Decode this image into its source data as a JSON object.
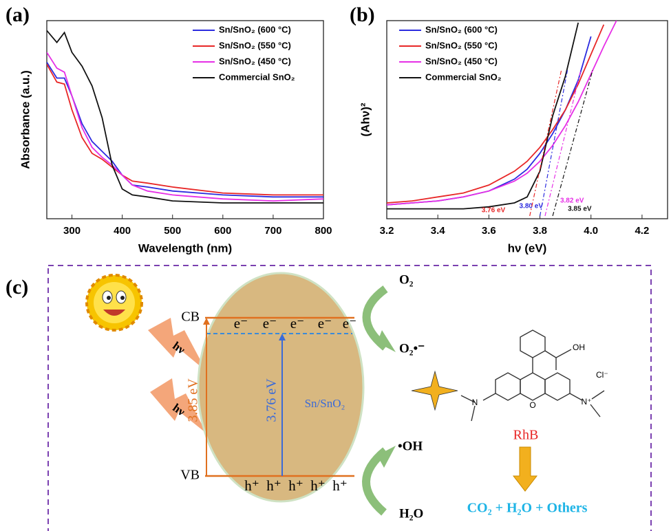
{
  "chart_data": [
    {
      "type": "line",
      "xlabel": "Wavelength (nm)",
      "ylabel": "Absorbance (a.u.)",
      "legend": "upper right",
      "x": [
        250,
        270,
        285,
        300,
        320,
        340,
        360,
        380,
        400,
        420,
        450,
        500,
        600,
        700,
        800
      ],
      "xlim": [
        250,
        800
      ],
      "xticks": [
        300,
        400,
        500,
        600,
        700,
        800
      ],
      "ylim": [
        0,
        1
      ],
      "series": [
        {
          "name": "Sn/SnO₂ (600 °C)",
          "color": "#2b2bdf",
          "values": [
            0.79,
            0.71,
            0.71,
            0.62,
            0.48,
            0.39,
            0.34,
            0.29,
            0.22,
            0.17,
            0.16,
            0.14,
            0.12,
            0.11,
            0.11
          ]
        },
        {
          "name": "Sn/SnO₂ (550 °C)",
          "color": "#e82626",
          "values": [
            0.78,
            0.69,
            0.68,
            0.55,
            0.41,
            0.33,
            0.3,
            0.26,
            0.22,
            0.19,
            0.18,
            0.16,
            0.13,
            0.12,
            0.12
          ]
        },
        {
          "name": "Sn/SnO₂ (450 °C)",
          "color": "#e62ee6",
          "values": [
            0.84,
            0.76,
            0.74,
            0.62,
            0.46,
            0.36,
            0.31,
            0.27,
            0.22,
            0.17,
            0.14,
            0.12,
            0.1,
            0.09,
            0.1
          ]
        },
        {
          "name": "Commercial SnO₂",
          "color": "#111111",
          "values": [
            0.95,
            0.89,
            0.94,
            0.84,
            0.77,
            0.67,
            0.51,
            0.27,
            0.15,
            0.12,
            0.11,
            0.09,
            0.08,
            0.08,
            0.08
          ]
        }
      ]
    },
    {
      "type": "line",
      "xlabel": "hν (eV)",
      "ylabel": "(Ahν)²",
      "legend": "upper left",
      "x": [
        3.2,
        3.3,
        3.4,
        3.5,
        3.6,
        3.7,
        3.75,
        3.8,
        3.85,
        3.9,
        3.95,
        4.0,
        4.05,
        4.1
      ],
      "xlim": [
        3.2,
        4.3
      ],
      "xticks": [
        {
          "value": 3.2,
          "label": "3.2"
        },
        {
          "value": 3.4,
          "label": "3.4"
        },
        {
          "value": 3.6,
          "label": "3.6"
        },
        {
          "value": 3.8,
          "label": "3.8"
        },
        {
          "value": 4.0,
          "label": "4.0"
        },
        {
          "value": 4.2,
          "label": "4.2"
        }
      ],
      "ylim": [
        0,
        1
      ],
      "series": [
        {
          "name": "Sn/SnO₂ (600 °C)",
          "color": "#2b2bdf",
          "values": [
            0.07,
            0.08,
            0.09,
            0.11,
            0.14,
            0.2,
            0.25,
            0.33,
            0.43,
            0.55,
            0.7,
            0.92,
            null,
            null
          ]
        },
        {
          "name": "Sn/SnO₂ (550 °C)",
          "color": "#e82626",
          "values": [
            0.08,
            0.09,
            0.11,
            0.13,
            0.17,
            0.24,
            0.29,
            0.36,
            0.45,
            0.55,
            0.68,
            0.83,
            0.98,
            null
          ]
        },
        {
          "name": "Sn/SnO₂ (450 °C)",
          "color": "#e62ee6",
          "values": [
            0.07,
            0.08,
            0.09,
            0.11,
            0.14,
            0.19,
            0.23,
            0.29,
            0.37,
            0.47,
            0.59,
            0.73,
            0.87,
            1.0
          ]
        },
        {
          "name": "Commercial SnO₂",
          "color": "#111111",
          "values": [
            0.05,
            0.05,
            0.05,
            0.05,
            0.06,
            0.08,
            0.11,
            0.24,
            0.52,
            0.72,
            0.99,
            null,
            null,
            null
          ]
        }
      ],
      "annotations": [
        {
          "text": "3.80 eV",
          "x": 3.8,
          "color": "#2b2bdf"
        },
        {
          "text": "3.76 eV",
          "x": 3.76,
          "color": "#e82626"
        },
        {
          "text": "3.82 eV",
          "x": 3.82,
          "color": "#e62ee6"
        },
        {
          "text": "3.85 eV",
          "x": 3.85,
          "color": "#111111"
        }
      ]
    }
  ],
  "panel_labels": [
    "(a)",
    "(b)",
    "(c)"
  ],
  "diagram": {
    "cb": "CB",
    "vb": "VB",
    "electrons": [
      "e⁻",
      "e⁻",
      "e⁻",
      "e⁻",
      "e⁻"
    ],
    "holes": [
      "h⁺",
      "h⁺",
      "h⁺",
      "h⁺",
      "h⁺"
    ],
    "gap_commercial": "3.85 eV",
    "gap_sample": "3.76 eV",
    "material": "Sn/SnO₂",
    "light": [
      "hν",
      "hν"
    ],
    "o2": "O₂",
    "superoxide": "O₂•⁻",
    "hydroxyl": "•OH",
    "water": "H₂O",
    "dye": "RhB",
    "products": "CO₂ + H₂O + Others",
    "structure": {
      "oh": "OH",
      "cl": "Cl⁻",
      "n_left": "N",
      "n_right": "N⁺",
      "o": "O"
    }
  }
}
